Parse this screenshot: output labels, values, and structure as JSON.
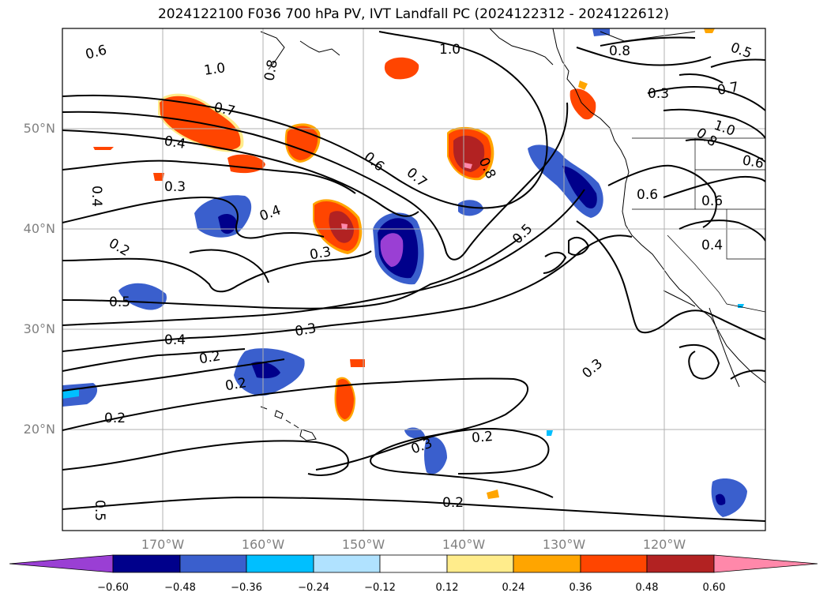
{
  "title": "2024122100 F036 700 hPa PV, IVT Landfall PC (2024122312 - 2024122612)",
  "lat_labels": [
    "50°N",
    "40°N",
    "30°N",
    "20°N"
  ],
  "lon_labels": [
    "170°W",
    "160°W",
    "150°W",
    "140°W",
    "130°W",
    "120°W"
  ],
  "colorbar": {
    "ticks": [
      "−0.60",
      "−0.48",
      "−0.36",
      "−0.24",
      "−0.12",
      "0.12",
      "0.24",
      "0.36",
      "0.48",
      "0.60"
    ],
    "colors": [
      "#9a3fd4",
      "#00008b",
      "#3a5fcd",
      "#00bfff",
      "#b0e2ff",
      "#ffffff",
      "#ffec8b",
      "#ffa500",
      "#ff4500",
      "#b22222",
      "#ff88aa"
    ]
  },
  "contour_labels": [
    "0.6",
    "1.0",
    "0.8",
    "1.0",
    "0.8",
    "0.5",
    "0.7",
    "0.4",
    "0.3",
    "0.4",
    "0.6",
    "0.7",
    "0.8",
    "0.5",
    "0.7",
    "1.0",
    "0.8",
    "0.6",
    "0.6",
    "0.4",
    "0.3",
    "0.4",
    "0.3",
    "0.2",
    "0.5",
    "0.4",
    "0.3",
    "0.2",
    "0.2",
    "0.2",
    "0.3",
    "0.2",
    "0.2",
    "0.3",
    "0.5",
    "0.6"
  ]
}
